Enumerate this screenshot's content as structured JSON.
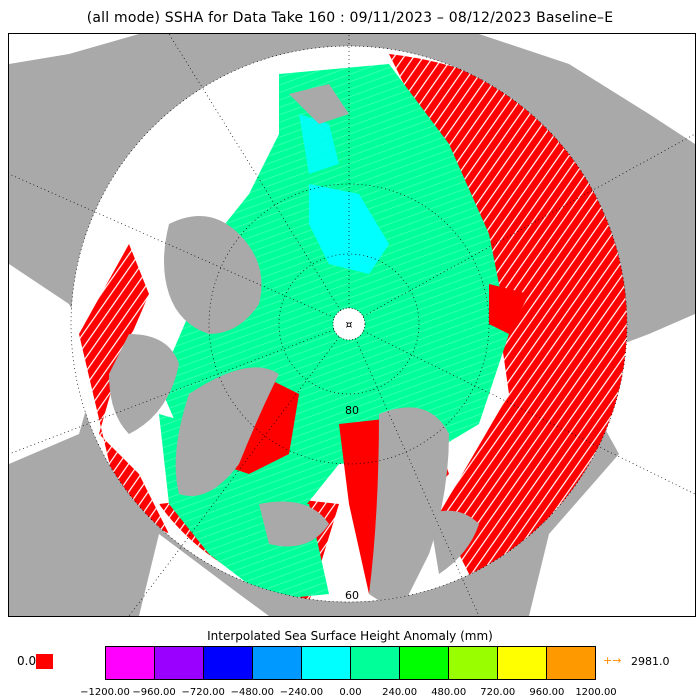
{
  "title": "(all mode) SSHA for Data Take 160 : 09/11/2023 – 08/12/2023 Baseline–E",
  "map": {
    "lat_labels": [
      "80",
      "60"
    ],
    "colors": {
      "land": "#a9a9a9",
      "ocean_background": "#ffffff",
      "no_data": "#ffffff",
      "out_of_range": "#ff0000",
      "main_anomaly": "#00ff99",
      "high_anomaly": "#00ffff"
    }
  },
  "colorbar": {
    "title": "Interpolated Sea Surface Height Anomaly (mm)",
    "colors": [
      "#ff00ff",
      "#9900ff",
      "#0000ff",
      "#0099ff",
      "#00ffff",
      "#00ff99",
      "#00ff00",
      "#99ff00",
      "#ffff00",
      "#ff9900"
    ],
    "ticks": [
      "−1200.00",
      "−960.00",
      "−720.00",
      "−480.00",
      "−240.00",
      "0.00",
      "240.00",
      "480.00",
      "720.00",
      "960.00",
      "1200.00"
    ],
    "zero_label": "0.0",
    "max_arrow": "+→",
    "max_value": "2981.0"
  }
}
